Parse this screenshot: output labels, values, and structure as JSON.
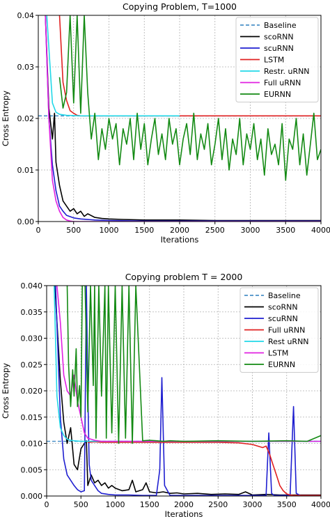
{
  "chart_data": [
    {
      "type": "line",
      "title": "Copying Problem, T=1000",
      "xlabel": "Iterations",
      "ylabel": "Cross Entropy",
      "xlim": [
        0,
        4000
      ],
      "ylim": [
        0,
        0.04
      ],
      "xticks": [
        0,
        500,
        1000,
        1500,
        2000,
        2500,
        3000,
        3500,
        4000
      ],
      "yticks": [
        0.0,
        0.01,
        0.02,
        0.03,
        0.04
      ],
      "ytick_labels": [
        "0.00",
        "0.01",
        "0.02",
        "0.03",
        "0.04"
      ],
      "grid": true,
      "legend": "top-right",
      "series": [
        {
          "name": "Baseline",
          "color": "#4a90c8",
          "dashed": true,
          "x": [
            0,
            4000
          ],
          "y": [
            0.0205,
            0.0205
          ]
        },
        {
          "name": "scoRNN",
          "color": "#000000",
          "x": [
            100,
            150,
            200,
            230,
            250,
            300,
            350,
            400,
            450,
            500,
            550,
            600,
            650,
            700,
            800,
            900,
            1000,
            1200,
            1500,
            2000,
            2500,
            3000,
            3500,
            4000
          ],
          "y": [
            0.04,
            0.022,
            0.016,
            0.021,
            0.0115,
            0.007,
            0.004,
            0.003,
            0.002,
            0.0025,
            0.0015,
            0.002,
            0.001,
            0.0015,
            0.0008,
            0.0006,
            0.0005,
            0.0004,
            0.0003,
            0.0003,
            0.0002,
            0.0002,
            0.0002,
            0.0002
          ]
        },
        {
          "name": "scuRNN",
          "color": "#1f1fd0",
          "x": [
            100,
            150,
            200,
            250,
            300,
            350,
            400,
            500,
            600,
            800,
            1000,
            1500,
            2000,
            2500,
            3000,
            3500,
            4000
          ],
          "y": [
            0.04,
            0.02,
            0.011,
            0.006,
            0.003,
            0.002,
            0.0012,
            0.0007,
            0.0005,
            0.0003,
            0.0002,
            0.0001,
            0.0001,
            0.0001,
            0.0001,
            0.0001,
            0.0001
          ]
        },
        {
          "name": "LSTM",
          "color": "#e02020",
          "x": [
            300,
            350,
            400,
            450,
            500,
            550,
            600,
            800,
            1000,
            2000,
            3000,
            4000
          ],
          "y": [
            0.04,
            0.027,
            0.0235,
            0.0215,
            0.021,
            0.0206,
            0.0205,
            0.0205,
            0.0205,
            0.0205,
            0.0205,
            0.0205
          ]
        },
        {
          "name": "Restr. uRNN",
          "color": "#22d8e8",
          "x": [
            120,
            200,
            250,
            300,
            400,
            600,
            1000,
            1500,
            2000
          ],
          "y": [
            0.04,
            0.023,
            0.0212,
            0.0208,
            0.0206,
            0.0205,
            0.0205,
            0.0205,
            0.0205
          ]
        },
        {
          "name": "Full uRNN",
          "color": "#e020e0",
          "x": [
            100,
            150,
            200,
            250,
            300,
            350,
            400,
            450,
            500,
            600,
            4000
          ],
          "y": [
            0.04,
            0.02,
            0.008,
            0.004,
            0.002,
            0.0008,
            0.0003,
            0.0001,
            0.0,
            0.0,
            0.0
          ]
        },
        {
          "name": "EURNN",
          "color": "#138a13",
          "x": [
            300,
            350,
            400,
            450,
            500,
            550,
            600,
            650,
            700,
            750,
            800,
            850,
            900,
            950,
            1000,
            1050,
            1100,
            1150,
            1200,
            1250,
            1300,
            1350,
            1400,
            1450,
            1500,
            1550,
            1600,
            1650,
            1700,
            1750,
            1800,
            1850,
            1900,
            1950,
            2000,
            2050,
            2100,
            2150,
            2200,
            2250,
            2300,
            2350,
            2400,
            2450,
            2500,
            2550,
            2600,
            2650,
            2700,
            2750,
            2800,
            2850,
            2900,
            2950,
            3000,
            3050,
            3100,
            3150,
            3200,
            3250,
            3300,
            3350,
            3400,
            3450,
            3500,
            3550,
            3600,
            3650,
            3700,
            3750,
            3800,
            3850,
            3900,
            3950,
            4000
          ],
          "y": [
            0.028,
            0.022,
            0.025,
            0.04,
            0.023,
            0.04,
            0.021,
            0.04,
            0.025,
            0.016,
            0.021,
            0.012,
            0.018,
            0.014,
            0.02,
            0.016,
            0.019,
            0.011,
            0.018,
            0.015,
            0.02,
            0.012,
            0.021,
            0.014,
            0.019,
            0.011,
            0.016,
            0.02,
            0.013,
            0.017,
            0.012,
            0.02,
            0.015,
            0.018,
            0.011,
            0.016,
            0.019,
            0.013,
            0.021,
            0.012,
            0.017,
            0.014,
            0.019,
            0.011,
            0.015,
            0.02,
            0.012,
            0.018,
            0.01,
            0.016,
            0.013,
            0.02,
            0.011,
            0.017,
            0.014,
            0.019,
            0.012,
            0.016,
            0.009,
            0.018,
            0.013,
            0.015,
            0.011,
            0.019,
            0.008,
            0.016,
            0.014,
            0.02,
            0.011,
            0.017,
            0.009,
            0.015,
            0.021,
            0.012,
            0.014
          ]
        }
      ]
    },
    {
      "type": "line",
      "title": "Copying problem T = 2000",
      "xlabel": "Iterations",
      "ylabel": "Cross Entropy",
      "xlim": [
        0,
        4000
      ],
      "ylim": [
        0,
        0.04
      ],
      "xticks": [
        0,
        500,
        1000,
        1500,
        2000,
        2500,
        3000,
        3500,
        4000
      ],
      "yticks": [
        0.0,
        0.005,
        0.01,
        0.015,
        0.02,
        0.025,
        0.03,
        0.035,
        0.04
      ],
      "ytick_labels": [
        "0.000",
        "0.005",
        "0.010",
        "0.015",
        "0.020",
        "0.025",
        "0.030",
        "0.035",
        "0.040"
      ],
      "grid": true,
      "legend": "top-right",
      "series": [
        {
          "name": "Baseline",
          "color": "#4a90c8",
          "dashed": true,
          "x": [
            0,
            4000
          ],
          "y": [
            0.0104,
            0.0104
          ]
        },
        {
          "name": "scoRNN",
          "color": "#000000",
          "x": [
            120,
            200,
            250,
            300,
            350,
            400,
            450,
            500,
            550,
            580,
            600,
            650,
            700,
            750,
            800,
            850,
            900,
            950,
            1000,
            1100,
            1200,
            1250,
            1300,
            1400,
            1450,
            1500,
            1600,
            1700,
            1800,
            1900,
            2000,
            2200,
            2400,
            2600,
            2800,
            2900,
            3000,
            3200,
            3400,
            3600,
            3800,
            4000
          ],
          "y": [
            0.04,
            0.022,
            0.014,
            0.01,
            0.013,
            0.006,
            0.005,
            0.009,
            0.01,
            0.0105,
            0.002,
            0.004,
            0.0025,
            0.003,
            0.002,
            0.0025,
            0.0015,
            0.002,
            0.0015,
            0.001,
            0.0012,
            0.003,
            0.0008,
            0.0012,
            0.0025,
            0.0008,
            0.0006,
            0.0008,
            0.0005,
            0.0006,
            0.0004,
            0.0005,
            0.0003,
            0.0004,
            0.0003,
            0.0008,
            0.0002,
            0.0003,
            0.0002,
            0.0002,
            0.0002,
            0.0002
          ]
        },
        {
          "name": "scuRNN",
          "color": "#1f1fd0",
          "x": [
            130,
            200,
            250,
            300,
            350,
            400,
            450,
            500,
            550,
            580,
            600,
            620,
            650,
            700,
            750,
            800,
            900,
            1000,
            1200,
            1400,
            1600,
            1650,
            1680,
            1720,
            1800,
            2000,
            2200,
            2400,
            2600,
            2800,
            3000,
            3200,
            3240,
            3280,
            3320,
            3400,
            3550,
            3600,
            3640,
            3700,
            3800,
            4000
          ],
          "y": [
            0.04,
            0.015,
            0.007,
            0.004,
            0.003,
            0.002,
            0.0012,
            0.0008,
            0.001,
            0.04,
            0.02,
            0.006,
            0.003,
            0.002,
            0.001,
            0.0005,
            0.0003,
            0.0002,
            0.0002,
            0.0001,
            0.0001,
            0.005,
            0.0225,
            0.002,
            0.0001,
            0.0001,
            0.0001,
            0.0001,
            0.0001,
            0.0001,
            0.0001,
            0.0001,
            0.012,
            0.0005,
            0.0001,
            0.0001,
            0.0001,
            0.017,
            0.0005,
            0.0001,
            0.0001,
            0.0001
          ]
        },
        {
          "name": "Full uRNN",
          "color": "#e02020",
          "x": [
            600,
            700,
            800,
            1000,
            1500,
            2000,
            2500,
            2800,
            3000,
            3150,
            3200,
            3250,
            3300,
            3350,
            3400,
            3450,
            3500,
            3550,
            3600,
            4000
          ],
          "y": [
            0.0102,
            0.0103,
            0.0102,
            0.0102,
            0.0102,
            0.0102,
            0.0102,
            0.0101,
            0.0098,
            0.0092,
            0.0095,
            0.008,
            0.006,
            0.004,
            0.002,
            0.001,
            0.0004,
            0.0002,
            0.0001,
            0.0001
          ]
        },
        {
          "name": "Rest uRNN",
          "color": "#22d8e8",
          "x": [
            110,
            150,
            200,
            250,
            300,
            350,
            400,
            500,
            700,
            1000,
            2000,
            3000,
            4000
          ],
          "y": [
            0.04,
            0.019,
            0.013,
            0.0115,
            0.0108,
            0.0106,
            0.0105,
            0.0104,
            0.0104,
            0.0104,
            0.0104,
            0.0104,
            0.0104
          ]
        },
        {
          "name": "LSTM",
          "color": "#e020e0",
          "x": [
            150,
            200,
            250,
            300,
            350,
            400,
            450,
            500,
            550,
            600,
            700,
            800,
            1000,
            2000,
            3000,
            4000
          ],
          "y": [
            0.04,
            0.033,
            0.023,
            0.02,
            0.019,
            0.023,
            0.018,
            0.015,
            0.012,
            0.011,
            0.0106,
            0.0104,
            0.0104,
            0.0104,
            0.0104,
            0.0104
          ]
        },
        {
          "name": "EURNN",
          "color": "#138a13",
          "x": [
            300,
            320,
            350,
            380,
            400,
            430,
            450,
            480,
            500,
            520,
            560,
            600,
            640,
            680,
            700,
            720,
            760,
            800,
            850,
            870,
            900,
            950,
            1000,
            1050,
            1100,
            1150,
            1200,
            1250,
            1300,
            1400,
            1500,
            1600,
            1700,
            1800,
            2000,
            2500,
            3000,
            3500,
            3800,
            4000
          ],
          "y": [
            0.04,
            0.025,
            0.017,
            0.024,
            0.019,
            0.028,
            0.017,
            0.021,
            0.015,
            0.04,
            0.04,
            0.016,
            0.04,
            0.021,
            0.04,
            0.011,
            0.04,
            0.019,
            0.04,
            0.011,
            0.04,
            0.012,
            0.04,
            0.01,
            0.04,
            0.011,
            0.04,
            0.01,
            0.04,
            0.0105,
            0.0106,
            0.0105,
            0.0104,
            0.0105,
            0.0104,
            0.0105,
            0.0104,
            0.0105,
            0.0104,
            0.0115
          ]
        }
      ]
    }
  ]
}
